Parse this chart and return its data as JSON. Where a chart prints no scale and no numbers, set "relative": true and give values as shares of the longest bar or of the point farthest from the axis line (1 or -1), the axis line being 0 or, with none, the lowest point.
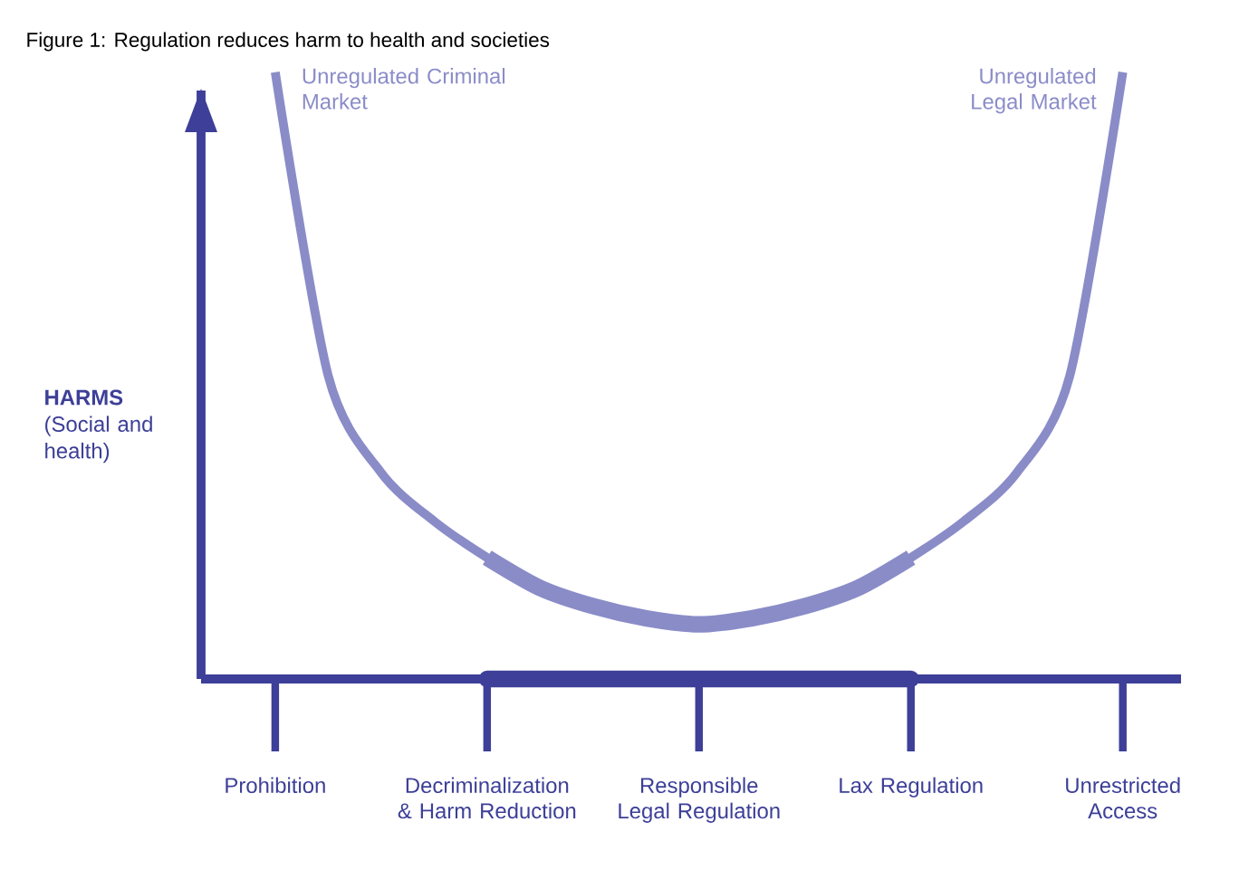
{
  "chart_data": {
    "type": "line",
    "relative": true,
    "title": "Figure 1: Regulation reduces harm to health and societies",
    "ylabel": "**HARMS** (Social and health)",
    "categories": [
      "Prohibition",
      null,
      null,
      null,
      "Decriminalization & Harm Reduction",
      null,
      null,
      null,
      "Responsible Legal Regulation",
      null,
      null,
      null,
      "Lax Regulation",
      null,
      null,
      null,
      "Unrestricted Access"
    ],
    "series": [
      {
        "color": "#8a8cc8",
        "values": [
          1,
          0.5,
          0.34,
          0.26,
          0.2,
          0.15,
          0.12,
          0.1,
          0.09,
          0.1,
          0.12,
          0.15,
          0.2,
          0.26,
          0.34,
          0.5,
          1
        ]
      },
      {
        "color": "#8a8cc8",
        "values": [
          null,
          null,
          null,
          null,
          0.2,
          0.15,
          0.12,
          0.1,
          0.09,
          0.1,
          0.12,
          0.15,
          0.2,
          null,
          null,
          null,
          null
        ]
      },
      {
        "color": "#3d3f98",
        "values": [
          null,
          null,
          null,
          null,
          0,
          0,
          0,
          0,
          0,
          0,
          0,
          0,
          0,
          null,
          null,
          null,
          null
        ]
      }
    ],
    "ref_lines": [
      {
        "axis": "y",
        "value": 0,
        "color": "#3d3f98"
      }
    ],
    "annotations": [
      "Unregulated Criminal Market",
      "Unregulated Legal Market"
    ]
  }
}
